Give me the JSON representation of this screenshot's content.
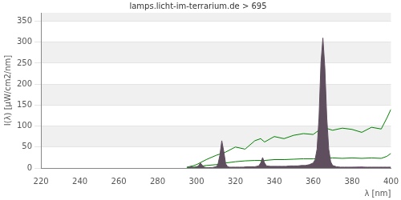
{
  "chart_data": {
    "type": "line",
    "title": "lamps.licht-im-terrarium.de > 695",
    "x_label": "λ [nm]",
    "y_label": "I(λ) [µW/cm2/nm]",
    "xlim": [
      220,
      400
    ],
    "xticks": [
      220,
      240,
      260,
      280,
      300,
      320,
      340,
      360,
      380,
      400
    ],
    "ylim": [
      0,
      370
    ],
    "yticks": [
      0,
      50,
      100,
      150,
      200,
      250,
      300,
      350
    ],
    "grid": true,
    "series": [
      {
        "type": "area",
        "color": "#5e4e5e",
        "x": [
          295,
          296,
          297,
          298,
          299,
          300,
          301,
          302,
          303,
          304,
          305,
          306,
          307,
          308,
          309,
          310,
          311,
          312,
          313,
          314,
          315,
          316,
          317,
          318,
          320,
          322,
          324,
          326,
          328,
          330,
          332,
          333,
          334,
          335,
          336,
          338,
          340,
          342,
          344,
          346,
          348,
          350,
          352,
          354,
          356,
          358,
          360,
          361,
          362,
          363,
          364,
          365,
          366,
          367,
          368,
          369,
          370,
          372,
          374,
          376,
          378,
          380,
          382,
          384,
          386,
          388,
          390,
          392,
          394,
          396,
          398,
          400
        ],
        "values": [
          0,
          1,
          3,
          2,
          1,
          2,
          5,
          12,
          6,
          2,
          1,
          1,
          1,
          1,
          2,
          3,
          8,
          30,
          65,
          40,
          10,
          3,
          2,
          2,
          2,
          2,
          2,
          3,
          3,
          3,
          5,
          12,
          25,
          12,
          5,
          4,
          4,
          4,
          4,
          4,
          5,
          5,
          5,
          6,
          6,
          8,
          12,
          20,
          45,
          120,
          250,
          310,
          240,
          120,
          45,
          15,
          6,
          3,
          2,
          2,
          2,
          2,
          2,
          2,
          2,
          2,
          2,
          2,
          2,
          2,
          2,
          2
        ]
      },
      {
        "type": "line",
        "color": "#008000",
        "x": [
          295,
          298,
          300,
          305,
          310,
          315,
          320,
          325,
          330,
          333,
          335,
          340,
          345,
          350,
          355,
          360,
          365,
          370,
          375,
          380,
          385,
          390,
          395,
          398,
          400
        ],
        "values": [
          2,
          5,
          8,
          20,
          30,
          38,
          50,
          45,
          65,
          70,
          62,
          75,
          70,
          78,
          82,
          80,
          97,
          90,
          95,
          92,
          85,
          97,
          93,
          120,
          140
        ]
      },
      {
        "type": "line",
        "color": "#008000",
        "x": [
          295,
          300,
          305,
          310,
          315,
          320,
          325,
          330,
          335,
          340,
          345,
          350,
          355,
          360,
          365,
          370,
          375,
          380,
          385,
          390,
          395,
          398,
          400
        ],
        "values": [
          0,
          3,
          6,
          8,
          12,
          15,
          17,
          18,
          18,
          20,
          20,
          21,
          22,
          22,
          23,
          24,
          23,
          24,
          23,
          24,
          23,
          28,
          35
        ]
      },
      {
        "type": "line",
        "color": "#990099",
        "x": [
          376,
          380,
          385,
          387,
          390,
          395,
          400
        ],
        "values": [
          0,
          1,
          2,
          1,
          0,
          1,
          0
        ]
      }
    ]
  }
}
